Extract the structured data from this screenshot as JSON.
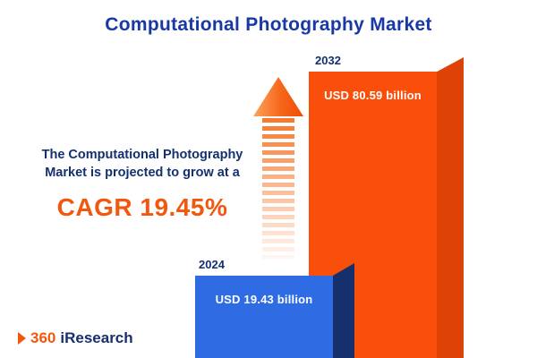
{
  "title": "Computational Photography Market",
  "subtitle": {
    "text": "The Computational Photography Market is projected to grow at a",
    "cagr": "CAGR 19.45%"
  },
  "chart_data": {
    "type": "bar",
    "title": "Computational Photography Market",
    "categories": [
      "2024",
      "2032"
    ],
    "values": [
      19.43,
      80.59
    ],
    "value_labels": [
      "USD 19.43 billion",
      "USD 80.59 billion"
    ],
    "unit": "USD billion",
    "cagr_percent": 19.45,
    "annotation": "The Computational Photography Market is projected to grow at a CAGR 19.45%",
    "legend": "none",
    "grid": false,
    "bar_colors": [
      "#2f6be2",
      "#f94f0a"
    ]
  },
  "bars": [
    {
      "year": "2024",
      "label": "USD 19.43 billion"
    },
    {
      "year": "2032",
      "label": "USD 80.59 billion"
    }
  ],
  "logo": {
    "part1": "360",
    "part2": "iResearch"
  },
  "colors": {
    "title": "#1839a5",
    "text_navy": "#13306f",
    "accent_orange": "#f2570e",
    "bar_blue": "#2f6be2",
    "bar_blue_side": "#162f6d",
    "bar_orange": "#f94f0a",
    "bar_orange_side": "#de4206"
  }
}
